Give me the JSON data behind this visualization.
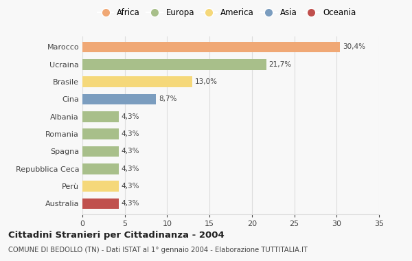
{
  "countries": [
    "Marocco",
    "Ucraina",
    "Brasile",
    "Cina",
    "Albania",
    "Romania",
    "Spagna",
    "Repubblica Ceca",
    "Perù",
    "Australia"
  ],
  "values": [
    30.4,
    21.7,
    13.0,
    8.7,
    4.3,
    4.3,
    4.3,
    4.3,
    4.3,
    4.3
  ],
  "labels": [
    "30,4%",
    "21,7%",
    "13,0%",
    "8,7%",
    "4,3%",
    "4,3%",
    "4,3%",
    "4,3%",
    "4,3%",
    "4,3%"
  ],
  "colors": [
    "#F0A875",
    "#A8BF8A",
    "#F5D87A",
    "#7B9DBF",
    "#A8BF8A",
    "#A8BF8A",
    "#A8BF8A",
    "#A8BF8A",
    "#F5D87A",
    "#C0504D"
  ],
  "legend_labels": [
    "Africa",
    "Europa",
    "America",
    "Asia",
    "Oceania"
  ],
  "legend_colors": [
    "#F0A875",
    "#A8BF8A",
    "#F5D87A",
    "#7B9DBF",
    "#C0504D"
  ],
  "xlim": [
    0,
    35
  ],
  "xticks": [
    0,
    5,
    10,
    15,
    20,
    25,
    30,
    35
  ],
  "title": "Cittadini Stranieri per Cittadinanza - 2004",
  "subtitle": "COMUNE DI BEDOLLO (TN) - Dati ISTAT al 1° gennaio 2004 - Elaborazione TUTTITALIA.IT",
  "background_color": "#F8F8F8",
  "bar_height": 0.62,
  "grid_color": "#DDDDDD",
  "text_color": "#444444",
  "fig_width": 6.0,
  "fig_height": 3.8,
  "dpi": 100
}
